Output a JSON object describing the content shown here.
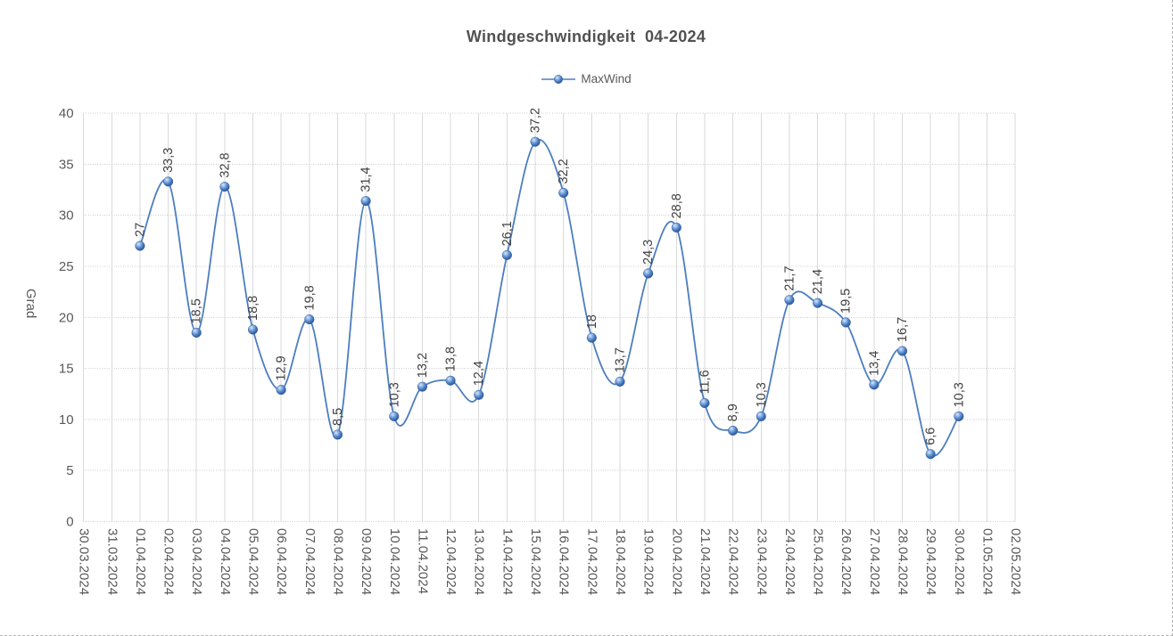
{
  "chart": {
    "title": "Windgeschwindigkeit  04-2024",
    "legend": {
      "label": "MaxWind",
      "position": "top"
    }
  },
  "chart_data": {
    "type": "line",
    "smooth": true,
    "title": "Windgeschwindigkeit  04-2024",
    "xlabel": "",
    "ylabel": "Grad",
    "ylim": [
      0,
      40
    ],
    "yticks": [
      0,
      5,
      10,
      15,
      20,
      25,
      30,
      35,
      40
    ],
    "grid": true,
    "legend_position": "top",
    "decimal_separator": ",",
    "categories": [
      "30.03.2024",
      "31.03.2024",
      "01.04.2024",
      "02.04.2024",
      "03.04.2024",
      "04.04.2024",
      "05.04.2024",
      "06.04.2024",
      "07.04.2024",
      "08.04.2024",
      "09.04.2024",
      "10.04.2024",
      "11.04.2024",
      "12.04.2024",
      "13.04.2024",
      "14.04.2024",
      "15.04.2024",
      "16.04.2024",
      "17.04.2024",
      "18.04.2024",
      "19.04.2024",
      "20.04.2024",
      "21.04.2024",
      "22.04.2024",
      "23.04.2024",
      "24.04.2024",
      "25.04.2024",
      "26.04.2024",
      "27.04.2024",
      "28.04.2024",
      "29.04.2024",
      "30.04.2024",
      "01.05.2024",
      "02.05.2024"
    ],
    "series": [
      {
        "name": "MaxWind",
        "values": [
          null,
          null,
          27,
          33.3,
          18.5,
          32.8,
          18.8,
          12.9,
          19.8,
          8.5,
          31.4,
          10.3,
          13.2,
          13.8,
          12.4,
          26.1,
          37.2,
          32.2,
          18,
          13.7,
          24.3,
          28.8,
          11.6,
          8.9,
          10.3,
          21.7,
          21.4,
          19.5,
          13.4,
          16.7,
          6.6,
          10.3,
          null,
          null
        ]
      }
    ]
  },
  "colors": {
    "line": "#4d7ebf",
    "marker_highlight": "#d9e7f7",
    "marker_mid": "#4a7cc2",
    "marker_dark": "#26528f",
    "grid": "#d9d9d9",
    "grid_dotted": "#cccccc",
    "axis_text": "#595959",
    "data_label_text": "#404040",
    "title_text": "#515151"
  }
}
